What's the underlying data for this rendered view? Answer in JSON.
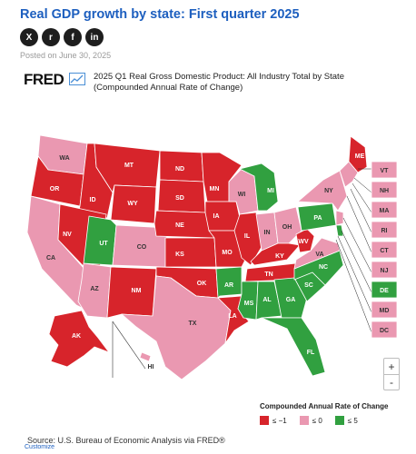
{
  "article": {
    "title": "Real GDP growth by state: First quarter 2025",
    "posted": "Posted on June 30, 2025",
    "share_icons": [
      "x-icon",
      "reddit-icon",
      "facebook-icon",
      "linkedin-icon"
    ],
    "share_glyphs": [
      "X",
      "r",
      "f",
      "in"
    ]
  },
  "fred": {
    "logo": "FRED",
    "map_title": "2025 Q1 Real Gross Domestic Product: All Industry Total by State (Compounded Annual Rate of Change)",
    "source": "Source: U.S. Bureau of Economic Analysis via FRED®",
    "customize": "Customize",
    "zoom_in": "+",
    "zoom_out": "-"
  },
  "legend": {
    "title": "Compounded Annual Rate of Change",
    "items": [
      {
        "label": "≤ −1",
        "color": "#d7242b"
      },
      {
        "label": "≤ 0",
        "color": "#ea98b1"
      },
      {
        "label": "≤ 5",
        "color": "#31a040"
      }
    ]
  },
  "colors": {
    "red": "#d7242b",
    "pink": "#ea98b1",
    "green": "#31a040",
    "title_blue": "#1d5fbf"
  },
  "states": {
    "WA": "pink",
    "OR": "red",
    "CA": "pink",
    "ID": "red",
    "NV": "red",
    "MT": "red",
    "WY": "red",
    "UT": "green",
    "AZ": "pink",
    "CO": "pink",
    "NM": "red",
    "ND": "red",
    "SD": "red",
    "NE": "red",
    "KS": "red",
    "OK": "red",
    "TX": "pink",
    "MN": "red",
    "IA": "red",
    "MO": "red",
    "AR": "green",
    "LA": "red",
    "WI": "pink",
    "IL": "red",
    "MI": "green",
    "IN": "pink",
    "OH": "pink",
    "KY": "red",
    "TN": "red",
    "MS": "green",
    "AL": "green",
    "GA": "green",
    "FL": "green",
    "SC": "green",
    "NC": "green",
    "VA": "pink",
    "WV": "red",
    "PA": "green",
    "NY": "pink",
    "ME": "red",
    "AK": "red",
    "HI": "pink",
    "VT": "pink",
    "NH": "pink",
    "MA": "pink",
    "RI": "pink",
    "CT": "pink",
    "NJ": "pink",
    "DE": "green",
    "MD": "pink",
    "DC": "pink"
  }
}
